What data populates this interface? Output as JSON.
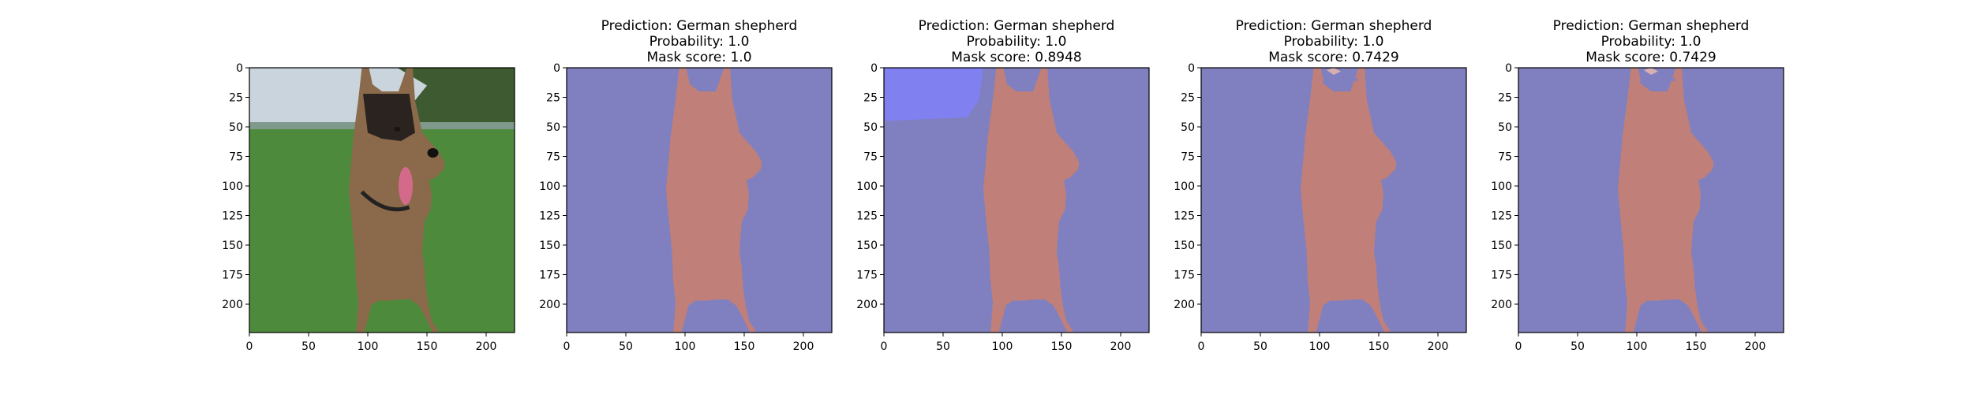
{
  "colors": {
    "background_mask": "#8080c0",
    "dog_mask": "#c07f78",
    "extra_mask": "#8080f0",
    "grass": "#4e8a3c",
    "sky": "#c9d4dc",
    "trees": "#3d5a30",
    "dog_fur": "#8a6a4a",
    "dog_dark": "#2a2320",
    "tongue": "#d46a8a"
  },
  "chart_data": [
    {
      "type": "image",
      "content": "input photo of a German shepherd dog on grass",
      "title": [],
      "xlim": [
        0,
        224
      ],
      "ylim": [
        224,
        0
      ],
      "x_ticks": [
        0,
        50,
        100,
        150,
        200
      ],
      "y_ticks": [
        0,
        25,
        50,
        75,
        100,
        125,
        150,
        175,
        200
      ]
    },
    {
      "type": "image",
      "content": "segmentation mask",
      "title": [
        "Prediction: German shepherd",
        "Probability: 1.0",
        "Mask score: 1.0"
      ],
      "xlim": [
        0,
        224
      ],
      "ylim": [
        224,
        0
      ],
      "x_ticks": [
        0,
        50,
        100,
        150,
        200
      ],
      "y_ticks": [
        0,
        25,
        50,
        75,
        100,
        125,
        150,
        175,
        200
      ],
      "extra_region": false,
      "speckles": false
    },
    {
      "type": "image",
      "content": "segmentation mask",
      "title": [
        "Prediction: German shepherd",
        "Probability: 1.0",
        "Mask score: 0.8948"
      ],
      "xlim": [
        0,
        224
      ],
      "ylim": [
        224,
        0
      ],
      "x_ticks": [
        0,
        50,
        100,
        150,
        200
      ],
      "y_ticks": [
        0,
        25,
        50,
        75,
        100,
        125,
        150,
        175,
        200
      ],
      "extra_region": true,
      "speckles": false
    },
    {
      "type": "image",
      "content": "segmentation mask",
      "title": [
        "Prediction: German shepherd",
        "Probability: 1.0",
        "Mask score: 0.7429"
      ],
      "xlim": [
        0,
        224
      ],
      "ylim": [
        224,
        0
      ],
      "x_ticks": [
        0,
        50,
        100,
        150,
        200
      ],
      "y_ticks": [
        0,
        25,
        50,
        75,
        100,
        125,
        150,
        175,
        200
      ],
      "extra_region": false,
      "speckles": true
    },
    {
      "type": "image",
      "content": "segmentation mask",
      "title": [
        "Prediction: German shepherd",
        "Probability: 1.0",
        "Mask score: 0.7429"
      ],
      "xlim": [
        0,
        224
      ],
      "ylim": [
        224,
        0
      ],
      "x_ticks": [
        0,
        50,
        100,
        150,
        200
      ],
      "y_ticks": [
        0,
        25,
        50,
        75,
        100,
        125,
        150,
        175,
        200
      ],
      "extra_region": false,
      "speckles": true
    }
  ]
}
